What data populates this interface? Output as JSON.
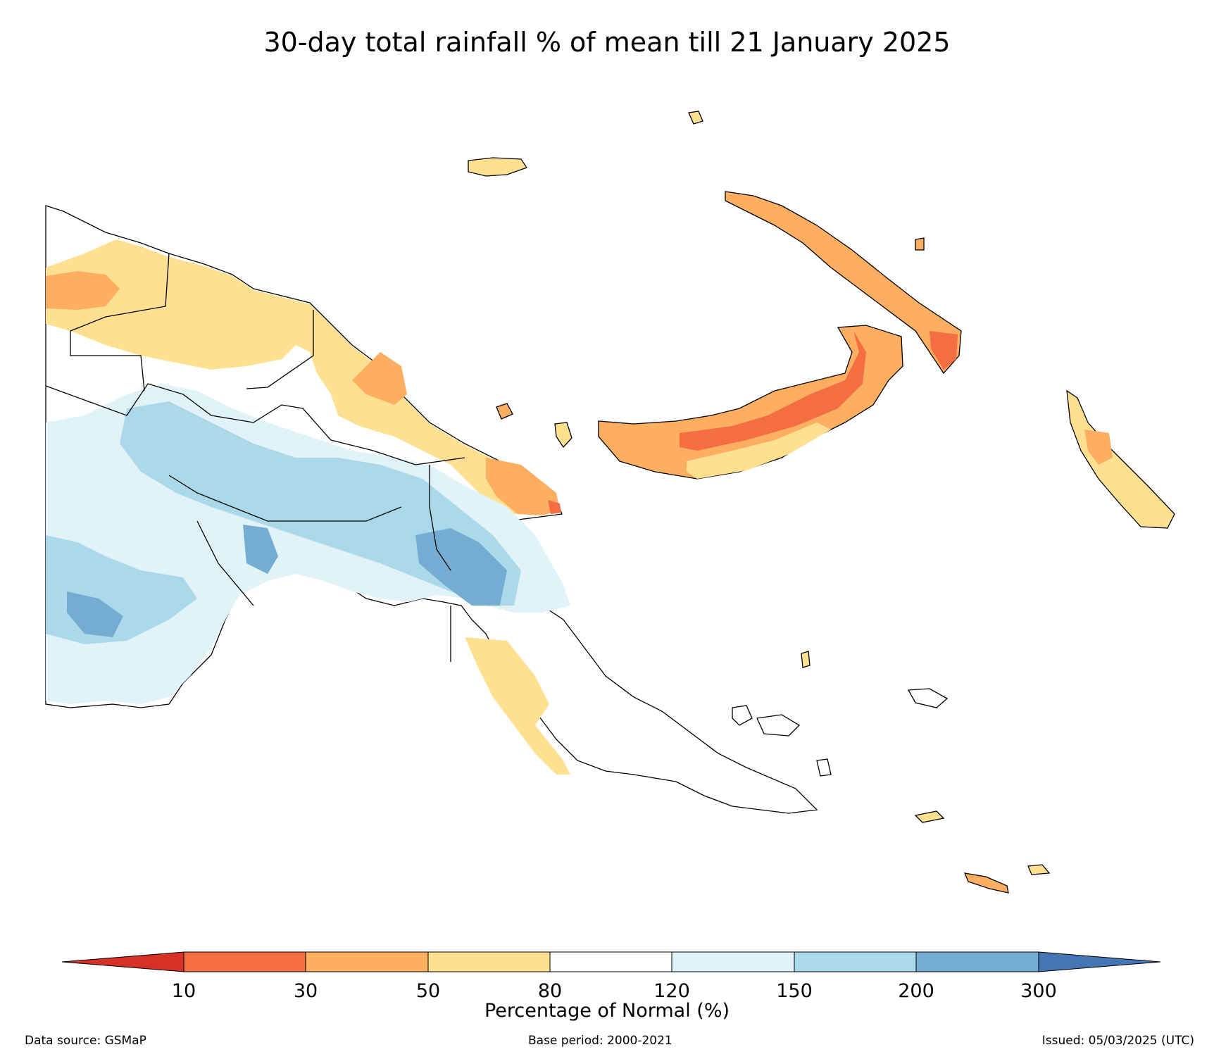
{
  "title": "30-day total rainfall % of mean till 21 January 2025",
  "colorbar": {
    "label": "Percentage of Normal (%)",
    "ticks": [
      "10",
      "30",
      "50",
      "80",
      "120",
      "150",
      "200",
      "300"
    ],
    "colors": {
      "lt10": "#d73027",
      "c10_30": "#f46d43",
      "c30_50": "#fdae61",
      "c50_80": "#fee090",
      "c80_120": "#ffffff",
      "c120_150": "#e0f3f8",
      "c150_200": "#abd9e9",
      "c200_300": "#74add1",
      "gt300": "#4575b4"
    }
  },
  "footer": {
    "source": "Data source: GSMaP",
    "base": "Base period: 2000-2021",
    "issued": "Issued: 05/03/2025 (UTC)"
  }
}
